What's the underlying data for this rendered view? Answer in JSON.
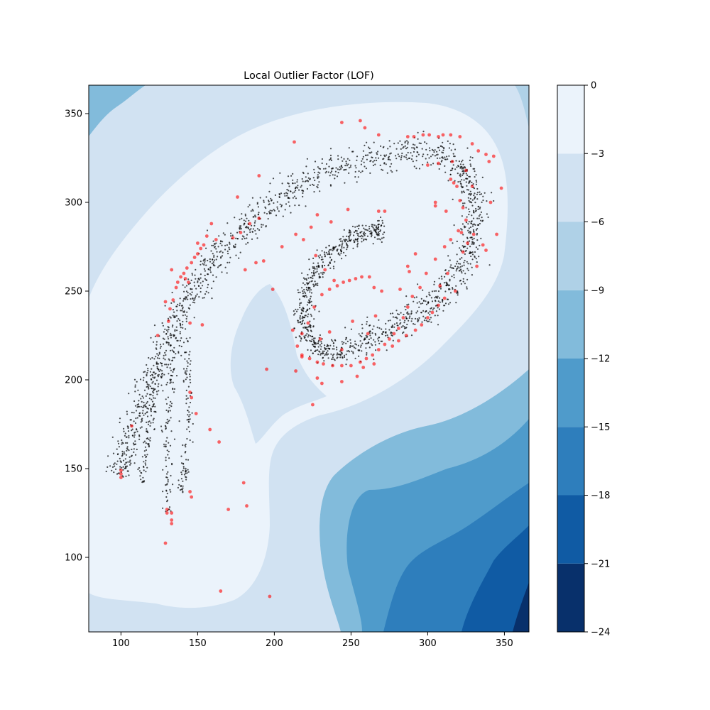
{
  "chart_data": {
    "type": "contour+scatter",
    "title": "Local Outlier Factor (LOF)",
    "xlabel": "",
    "ylabel": "",
    "xlim": [
      79,
      366
    ],
    "ylim": [
      58,
      366
    ],
    "x_ticks": [
      100,
      150,
      200,
      250,
      300,
      350
    ],
    "y_ticks": [
      100,
      150,
      200,
      250,
      300,
      350
    ],
    "x_tick_labels": [
      "100",
      "150",
      "200",
      "250",
      "300",
      "350"
    ],
    "y_tick_labels": [
      "100",
      "150",
      "200",
      "250",
      "300",
      "350"
    ],
    "grid": false,
    "colorbar": {
      "range": [
        -24,
        0
      ],
      "levels": [
        -24,
        -21,
        -18,
        -15,
        -12,
        -9,
        -6,
        -3,
        0
      ],
      "tick_labels": [
        "−24",
        "−21",
        "−18",
        "−15",
        "−12",
        "−9",
        "−6",
        "−3",
        "0"
      ],
      "colors": [
        "#08306b",
        "#105ba4",
        "#2e7ebc",
        "#4f9bcb",
        "#82bbdb",
        "#afd1e7",
        "#d1e2f2",
        "#ebf3fb"
      ]
    },
    "inliers": {
      "color": "#000000",
      "approx_count": 2200,
      "outer_arm_path": [
        [
          100,
          146
        ],
        [
          103,
          158
        ],
        [
          108,
          172
        ],
        [
          114,
          186
        ],
        [
          120,
          200
        ],
        [
          126,
          214
        ],
        [
          133,
          228
        ],
        [
          141,
          241
        ],
        [
          150,
          254
        ],
        [
          160,
          266
        ],
        [
          171,
          277
        ],
        [
          183,
          288
        ],
        [
          197,
          298
        ],
        [
          212,
          307
        ],
        [
          228,
          314
        ],
        [
          246,
          320
        ],
        [
          265,
          325
        ],
        [
          285,
          328
        ],
        [
          303,
          328
        ],
        [
          317,
          324
        ],
        [
          326,
          314
        ],
        [
          330,
          302
        ],
        [
          330,
          288
        ],
        [
          327,
          274
        ],
        [
          321,
          262
        ],
        [
          313,
          251
        ],
        [
          302,
          242
        ],
        [
          290,
          235
        ],
        [
          276,
          229
        ],
        [
          262,
          223
        ],
        [
          248,
          218
        ],
        [
          236,
          215
        ]
      ],
      "inner_ring_path": [
        [
          236,
          215
        ],
        [
          226,
          219
        ],
        [
          220,
          229
        ],
        [
          219,
          242
        ],
        [
          223,
          255
        ],
        [
          231,
          266
        ],
        [
          241,
          275
        ],
        [
          252,
          281
        ],
        [
          263,
          284
        ],
        [
          272,
          283
        ]
      ],
      "lower_strands": [
        [
          [
            136,
            225
          ],
          [
            133,
            205
          ],
          [
            131,
            185
          ],
          [
            130,
            165
          ],
          [
            130,
            145
          ],
          [
            130,
            125
          ]
        ],
        [
          [
            143,
            225
          ],
          [
            143,
            205
          ],
          [
            144,
            185
          ],
          [
            143,
            165
          ],
          [
            141,
            148
          ],
          [
            139,
            135
          ]
        ],
        [
          [
            125,
            210
          ],
          [
            121,
            190
          ],
          [
            118,
            170
          ],
          [
            116,
            155
          ],
          [
            114,
            142
          ]
        ]
      ]
    },
    "outliers": {
      "color": "#ff0000",
      "points": [
        [
          100,
          145
        ],
        [
          100,
          147
        ],
        [
          100,
          149
        ],
        [
          107,
          174
        ],
        [
          124,
          225
        ],
        [
          129,
          244
        ],
        [
          131,
          233
        ],
        [
          132,
          240
        ],
        [
          133,
          262
        ],
        [
          134,
          245
        ],
        [
          136,
          252
        ],
        [
          137,
          255
        ],
        [
          139,
          258
        ],
        [
          141,
          260
        ],
        [
          143,
          263
        ],
        [
          146,
          266
        ],
        [
          148,
          269
        ],
        [
          150,
          271
        ],
        [
          152,
          274
        ],
        [
          154,
          276
        ],
        [
          156,
          281
        ],
        [
          159,
          288
        ],
        [
          162,
          279
        ],
        [
          150,
          277
        ],
        [
          142,
          257
        ],
        [
          144,
          255
        ],
        [
          145,
          232
        ],
        [
          153,
          231
        ],
        [
          145,
          193
        ],
        [
          146,
          190
        ],
        [
          149,
          181
        ],
        [
          158,
          172
        ],
        [
          164,
          165
        ],
        [
          145,
          137
        ],
        [
          146,
          134
        ],
        [
          130,
          127
        ],
        [
          130,
          125
        ],
        [
          133,
          125
        ],
        [
          133,
          121
        ],
        [
          133,
          119
        ],
        [
          129,
          108
        ],
        [
          170,
          127
        ],
        [
          182,
          129
        ],
        [
          180,
          142
        ],
        [
          165,
          81
        ],
        [
          197,
          78
        ],
        [
          195,
          206
        ],
        [
          176,
          303
        ],
        [
          190,
          315
        ],
        [
          213,
          334
        ],
        [
          244,
          345
        ],
        [
          256,
          346
        ],
        [
          259,
          342
        ],
        [
          268,
          338
        ],
        [
          287,
          337
        ],
        [
          291,
          337
        ],
        [
          297,
          338
        ],
        [
          301,
          338
        ],
        [
          307,
          337
        ],
        [
          310,
          338
        ],
        [
          315,
          338
        ],
        [
          321,
          337
        ],
        [
          329,
          333
        ],
        [
          333,
          329
        ],
        [
          338,
          327
        ],
        [
          340,
          323
        ],
        [
          343,
          326
        ],
        [
          348,
          308
        ],
        [
          341,
          300
        ],
        [
          345,
          282
        ],
        [
          338,
          273
        ],
        [
          332,
          264
        ],
        [
          336,
          276
        ],
        [
          315,
          313
        ],
        [
          317,
          311
        ],
        [
          319,
          309
        ],
        [
          321,
          301
        ],
        [
          323,
          297
        ],
        [
          320,
          284
        ],
        [
          315,
          279
        ],
        [
          311,
          275
        ],
        [
          305,
          268
        ],
        [
          299,
          260
        ],
        [
          295,
          252
        ],
        [
          290,
          247
        ],
        [
          287,
          241
        ],
        [
          284,
          235
        ],
        [
          281,
          229
        ],
        [
          278,
          226
        ],
        [
          275,
          223
        ],
        [
          272,
          220
        ],
        [
          268,
          217
        ],
        [
          264,
          214
        ],
        [
          260,
          212
        ],
        [
          256,
          210
        ],
        [
          250,
          208
        ],
        [
          244,
          208
        ],
        [
          238,
          208
        ],
        [
          232,
          209
        ],
        [
          228,
          210
        ],
        [
          223,
          212
        ],
        [
          218,
          214
        ],
        [
          215,
          219
        ],
        [
          218,
          226
        ],
        [
          222,
          232
        ],
        [
          226,
          241
        ],
        [
          231,
          248
        ],
        [
          236,
          251
        ],
        [
          241,
          253
        ],
        [
          245,
          255
        ],
        [
          249,
          256
        ],
        [
          253,
          257
        ],
        [
          257,
          258
        ],
        [
          262,
          258
        ],
        [
          265,
          252
        ],
        [
          270,
          250
        ],
        [
          224,
          286
        ],
        [
          228,
          293
        ],
        [
          237,
          289
        ],
        [
          248,
          296
        ],
        [
          268,
          295
        ],
        [
          272,
          295
        ],
        [
          212,
          228
        ],
        [
          218,
          213
        ],
        [
          214,
          205
        ],
        [
          228,
          201
        ],
        [
          231,
          198
        ],
        [
          244,
          199
        ],
        [
          254,
          202
        ],
        [
          258,
          207
        ],
        [
          265,
          209
        ],
        [
          225,
          186
        ],
        [
          230,
          223
        ],
        [
          236,
          227
        ],
        [
          244,
          217
        ],
        [
          251,
          233
        ],
        [
          261,
          226
        ],
        [
          266,
          236
        ],
        [
          282,
          251
        ],
        [
          288,
          261
        ],
        [
          287,
          264
        ],
        [
          292,
          271
        ],
        [
          305,
          298
        ],
        [
          300,
          321
        ],
        [
          307,
          322
        ],
        [
          316,
          323
        ],
        [
          325,
          318
        ],
        [
          329,
          309
        ],
        [
          305,
          300
        ],
        [
          312,
          295
        ],
        [
          330,
          282
        ],
        [
          326,
          277
        ],
        [
          323,
          272
        ],
        [
          322,
          283
        ],
        [
          325,
          290
        ],
        [
          313,
          260
        ],
        [
          308,
          253
        ],
        [
          318,
          250
        ],
        [
          311,
          246
        ],
        [
          307,
          242
        ],
        [
          303,
          238
        ],
        [
          300,
          235
        ],
        [
          296,
          231
        ],
        [
          292,
          228
        ],
        [
          286,
          225
        ],
        [
          281,
          222
        ],
        [
          277,
          219
        ],
        [
          199,
          251
        ],
        [
          205,
          275
        ],
        [
          214,
          282
        ],
        [
          219,
          279
        ],
        [
          227,
          270
        ],
        [
          233,
          262
        ],
        [
          239,
          256
        ],
        [
          173,
          280
        ],
        [
          178,
          283
        ],
        [
          184,
          288
        ],
        [
          190,
          291
        ],
        [
          181,
          262
        ],
        [
          188,
          266
        ],
        [
          193,
          267
        ]
      ]
    }
  }
}
